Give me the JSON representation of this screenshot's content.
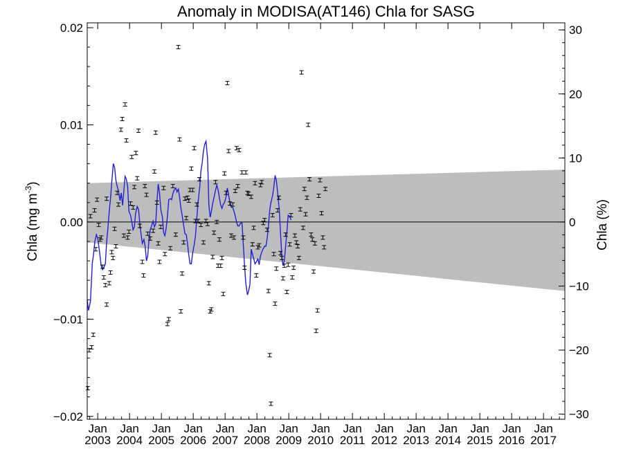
{
  "chart_data": {
    "type": "scatter",
    "title": "Anomaly in MODISA(AT146) Chla for SASG",
    "ylabel": "Chla (mg m",
    "ylabel_superscript": "-3",
    "ylabel_close": ")",
    "ylabel_right": "Chla (%)",
    "xlim": [
      2002.67,
      2017.67
    ],
    "ylim": [
      -0.0203,
      0.0205
    ],
    "ylim_right": [
      -30.8,
      31.1
    ],
    "yticks": [
      {
        "value": 0.02,
        "label": "0.02"
      },
      {
        "value": 0.01,
        "label": "0.01"
      },
      {
        "value": 0.0,
        "label": "0.00"
      },
      {
        "value": -0.01,
        "label": "−0.01"
      },
      {
        "value": -0.02,
        "label": "−0.02"
      }
    ],
    "yticks_right": [
      {
        "value": 30,
        "label": "30"
      },
      {
        "value": 20,
        "label": "20"
      },
      {
        "value": 10,
        "label": "10"
      },
      {
        "value": 0,
        "label": "0"
      },
      {
        "value": -10,
        "label": "−10"
      },
      {
        "value": -20,
        "label": "−20"
      },
      {
        "value": -30,
        "label": "−30"
      }
    ],
    "xticks": [
      {
        "value": 2003,
        "month": "Jan",
        "year": "2003"
      },
      {
        "value": 2004,
        "month": "Jan",
        "year": "2004"
      },
      {
        "value": 2005,
        "month": "Jan",
        "year": "2005"
      },
      {
        "value": 2006,
        "month": "Jan",
        "year": "2006"
      },
      {
        "value": 2007,
        "month": "Jan",
        "year": "2007"
      },
      {
        "value": 2008,
        "month": "Jan",
        "year": "2008"
      },
      {
        "value": 2009,
        "month": "Jan",
        "year": "2009"
      },
      {
        "value": 2010,
        "month": "Jan",
        "year": "2010"
      },
      {
        "value": 2011,
        "month": "Jan",
        "year": "2011"
      },
      {
        "value": 2012,
        "month": "Jan",
        "year": "2012"
      },
      {
        "value": 2013,
        "month": "Jan",
        "year": "2013"
      },
      {
        "value": 2014,
        "month": "Jan",
        "year": "2014"
      },
      {
        "value": 2015,
        "month": "Jan",
        "year": "2015"
      },
      {
        "value": 2016,
        "month": "Jan",
        "year": "2016"
      },
      {
        "value": 2017,
        "month": "Jan",
        "year": "2017"
      }
    ],
    "band": {
      "x": [
        2002.67,
        2017.67
      ],
      "upper": [
        0.004,
        0.0054
      ],
      "lower": [
        -0.0021,
        -0.0071
      ]
    },
    "zero_line": 0.0,
    "points": [
      [
        2002.69,
        -0.0171
      ],
      [
        2002.73,
        -0.0132
      ],
      [
        2002.77,
        0.0006
      ],
      [
        2002.81,
        -0.0129
      ],
      [
        2002.86,
        -0.0116
      ],
      [
        2002.9,
        0.0012
      ],
      [
        2002.94,
        -0.0028
      ],
      [
        2002.98,
        0.0023
      ],
      [
        2003.03,
        -0.0003
      ],
      [
        2003.07,
        -0.0018
      ],
      [
        2003.11,
        -0.0016
      ],
      [
        2003.15,
        -0.0046
      ],
      [
        2003.19,
        -0.0057
      ],
      [
        2003.24,
        -0.0065
      ],
      [
        2003.28,
        -0.0085
      ],
      [
        2003.36,
        -0.0063
      ],
      [
        2003.4,
        -0.0052
      ],
      [
        2003.44,
        -0.0031
      ],
      [
        2003.48,
        -0.0037
      ],
      [
        2003.53,
        -0.0007
      ],
      [
        2003.57,
        -0.0025
      ],
      [
        2003.61,
        0.003
      ],
      [
        2003.65,
        0.0018
      ],
      [
        2003.28,
        0.0024
      ],
      [
        2003.73,
        0.0095
      ],
      [
        2003.77,
        0.0106
      ],
      [
        2003.82,
        -0.0014
      ],
      [
        2003.86,
        0.0121
      ],
      [
        2003.9,
        0.0084
      ],
      [
        2003.94,
        -0.0016
      ],
      [
        2003.98,
        -0.001
      ],
      [
        2004.03,
        0.0019
      ],
      [
        2004.07,
        0.0067
      ],
      [
        2004.11,
        0.0015
      ],
      [
        2004.15,
        0.0036
      ],
      [
        2004.2,
        0.0071
      ],
      [
        2004.24,
        0.0045
      ],
      [
        2004.28,
        0.0094
      ],
      [
        2004.32,
        -0.0004
      ],
      [
        2004.4,
        -0.0041
      ],
      [
        2004.44,
        -0.0055
      ],
      [
        2004.48,
        0.0037
      ],
      [
        2004.53,
        0.0028
      ],
      [
        2004.57,
        -0.0012
      ],
      [
        2004.65,
        -0.0017
      ],
      [
        2004.74,
        -0.0009
      ],
      [
        2004.78,
        0.0052
      ],
      [
        2004.82,
        0.0092
      ],
      [
        2004.86,
        0.002
      ],
      [
        2004.9,
        -0.0022
      ],
      [
        2004.94,
        -0.0041
      ],
      [
        2004.98,
        -0.0005
      ],
      [
        2005.07,
        0.0035
      ],
      [
        2005.11,
        -0.0033
      ],
      [
        2005.19,
        -0.0105
      ],
      [
        2005.23,
        -0.01
      ],
      [
        2005.28,
        -0.0027
      ],
      [
        2005.36,
        0.0037
      ],
      [
        2005.45,
        -0.0013
      ],
      [
        2005.53,
        0.018
      ],
      [
        2005.57,
        0.0085
      ],
      [
        2005.61,
        -0.0092
      ],
      [
        2005.65,
        -0.0053
      ],
      [
        2005.7,
        -0.0021
      ],
      [
        2005.74,
        0.0024
      ],
      [
        2005.78,
        0.0004
      ],
      [
        2005.82,
        0.0025
      ],
      [
        2005.86,
        0.0022
      ],
      [
        2005.9,
        0.0033
      ],
      [
        2005.94,
        0.0055
      ],
      [
        2005.98,
        0.0033
      ],
      [
        2006.03,
        0.0076
      ],
      [
        2006.07,
        0.0001
      ],
      [
        2006.11,
        0.0018
      ],
      [
        2006.15,
        0.0001
      ],
      [
        2006.19,
        0.0044
      ],
      [
        2006.24,
        -0.0003
      ],
      [
        2006.32,
        -0.0021
      ],
      [
        2006.4,
        0.0001
      ],
      [
        2006.45,
        -0.0002
      ],
      [
        2006.49,
        -0.0063
      ],
      [
        2006.53,
        -0.0092
      ],
      [
        2006.57,
        -0.009
      ],
      [
        2006.61,
        -0.0036
      ],
      [
        2006.65,
        -0.0011
      ],
      [
        2006.7,
        0.0041
      ],
      [
        2006.74,
        0.0
      ],
      [
        2006.78,
        -0.0045
      ],
      [
        2006.82,
        -0.0018
      ],
      [
        2006.86,
        -0.0045
      ],
      [
        2006.9,
        -0.0037
      ],
      [
        2006.94,
        -0.0074
      ],
      [
        2006.98,
        0.005
      ],
      [
        2007.03,
        0.003
      ],
      [
        2007.07,
        0.0143
      ],
      [
        2007.11,
        0.0073
      ],
      [
        2007.15,
        0.0019
      ],
      [
        2007.19,
        -0.0014
      ],
      [
        2007.24,
        0.0018
      ],
      [
        2007.28,
        -0.0016
      ],
      [
        2007.32,
        0.0032
      ],
      [
        2007.36,
        0.0076
      ],
      [
        2007.4,
        0.0037
      ],
      [
        2007.44,
        0.0074
      ],
      [
        2007.53,
        0.0051
      ],
      [
        2007.57,
        -0.0016
      ],
      [
        2007.61,
        -0.0047
      ],
      [
        2007.65,
        0.0051
      ],
      [
        2007.7,
        0.003
      ],
      [
        2007.74,
        0.0029
      ],
      [
        2007.82,
        0.0026
      ],
      [
        2007.86,
        -0.0023
      ],
      [
        2007.9,
        -0.0006
      ],
      [
        2007.94,
        0.004
      ],
      [
        2007.98,
        -0.0055
      ],
      [
        2008.03,
        -0.0026
      ],
      [
        2008.07,
        -0.0024
      ],
      [
        2008.11,
        0.0038
      ],
      [
        2008.15,
        0.0041
      ],
      [
        2008.2,
        -0.0001
      ],
      [
        2008.24,
        0.0002
      ],
      [
        2008.32,
        -0.0008
      ],
      [
        2008.36,
        -0.0071
      ],
      [
        2008.4,
        -0.0137
      ],
      [
        2008.44,
        -0.0187
      ],
      [
        2008.49,
        0.0007
      ],
      [
        2008.53,
        -0.0033
      ],
      [
        2008.57,
        -0.0084
      ],
      [
        2008.61,
        -0.0048
      ],
      [
        2008.65,
        0.0012
      ],
      [
        2008.69,
        0.0025
      ],
      [
        2008.74,
        -0.0032
      ],
      [
        2008.78,
        -0.0037
      ],
      [
        2008.82,
        -0.0058
      ],
      [
        2008.86,
        -0.0045
      ],
      [
        2008.9,
        -0.0013
      ],
      [
        2008.94,
        -0.0072
      ],
      [
        2008.98,
        -0.0044
      ],
      [
        2009.03,
        -0.0023
      ],
      [
        2009.07,
        0.0007
      ],
      [
        2009.11,
        -0.0057
      ],
      [
        2009.15,
        -0.0047
      ],
      [
        2009.19,
        -0.0014
      ],
      [
        2009.24,
        -0.0021
      ],
      [
        2009.28,
        -0.0025
      ],
      [
        2009.32,
        -0.0037
      ],
      [
        2009.36,
        0.0013
      ],
      [
        2009.4,
        0.0154
      ],
      [
        2009.45,
        -0.0006
      ],
      [
        2009.49,
        0.0034
      ],
      [
        2009.53,
        0.0008
      ],
      [
        2009.57,
        0.0025
      ],
      [
        2009.61,
        0.01
      ],
      [
        2009.65,
        0.0044
      ],
      [
        2009.7,
        -0.0013
      ],
      [
        2009.74,
        -0.0018
      ],
      [
        2009.78,
        -0.0051
      ],
      [
        2009.82,
        -0.0022
      ],
      [
        2009.86,
        -0.0112
      ],
      [
        2009.9,
        -0.0091
      ],
      [
        2009.94,
        0.0027
      ],
      [
        2009.98,
        0.0043
      ],
      [
        2010.03,
        0.0009
      ],
      [
        2010.07,
        -0.0016
      ],
      [
        2010.11,
        -0.0026
      ],
      [
        2010.15,
        0.0034
      ]
    ],
    "trend_line": [
      [
        2002.67,
        -0.008
      ],
      [
        2002.71,
        -0.0091
      ],
      [
        2002.77,
        -0.0082
      ],
      [
        2002.83,
        -0.0042
      ],
      [
        2002.87,
        -0.0033
      ],
      [
        2002.91,
        -0.002
      ],
      [
        2002.96,
        -0.0013
      ],
      [
        2003.0,
        -0.0017
      ],
      [
        2003.05,
        -0.0029
      ],
      [
        2003.11,
        -0.0045
      ],
      [
        2003.15,
        -0.0049
      ],
      [
        2003.19,
        -0.0047
      ],
      [
        2003.24,
        -0.0043
      ],
      [
        2003.28,
        -0.002
      ],
      [
        2003.32,
        -0.0006
      ],
      [
        2003.36,
        0.001
      ],
      [
        2003.4,
        0.0024
      ],
      [
        2003.45,
        0.0045
      ],
      [
        2003.49,
        0.006
      ],
      [
        2003.53,
        0.0056
      ],
      [
        2003.57,
        0.0043
      ],
      [
        2003.61,
        0.0037
      ],
      [
        2003.65,
        0.0032
      ],
      [
        2003.7,
        0.0022
      ],
      [
        2003.74,
        0.003
      ],
      [
        2003.78,
        0.0017
      ],
      [
        2003.82,
        0.0032
      ],
      [
        2003.86,
        0.0047
      ],
      [
        2003.9,
        0.0044
      ],
      [
        2003.94,
        0.0036
      ],
      [
        2003.98,
        0.0011
      ],
      [
        2004.03,
        0.0007
      ],
      [
        2004.07,
        0.0
      ],
      [
        2004.11,
        -0.0008
      ],
      [
        2004.15,
        -0.0005
      ],
      [
        2004.19,
        0.0009
      ],
      [
        2004.24,
        0.0016
      ],
      [
        2004.28,
        0.0013
      ],
      [
        2004.32,
        -0.0001
      ],
      [
        2004.36,
        -0.0012
      ],
      [
        2004.4,
        -0.0022
      ],
      [
        2004.45,
        -0.0018
      ],
      [
        2004.49,
        -0.0025
      ],
      [
        2004.53,
        -0.004
      ],
      [
        2004.57,
        -0.0035
      ],
      [
        2004.61,
        -0.0018
      ],
      [
        2004.65,
        -0.0008
      ],
      [
        2004.7,
        -0.0003
      ],
      [
        2004.74,
        0.0001
      ],
      [
        2004.78,
        -0.0005
      ],
      [
        2004.82,
        -0.0002
      ],
      [
        2004.86,
        0.0021
      ],
      [
        2004.9,
        0.0039
      ],
      [
        2004.94,
        0.003
      ],
      [
        2004.98,
        0.0013
      ],
      [
        2005.03,
        0.0005
      ],
      [
        2005.07,
        -0.0011
      ],
      [
        2005.11,
        -0.0014
      ],
      [
        2005.15,
        -0.0006
      ],
      [
        2005.19,
        0.0006
      ],
      [
        2005.23,
        0.0023
      ],
      [
        2005.28,
        0.0024
      ],
      [
        2005.32,
        0.0023
      ],
      [
        2005.36,
        0.0029
      ],
      [
        2005.4,
        0.0033
      ],
      [
        2005.45,
        0.0035
      ],
      [
        2005.49,
        0.0031
      ],
      [
        2005.53,
        0.0034
      ],
      [
        2005.57,
        0.0026
      ],
      [
        2005.61,
        0.0015
      ],
      [
        2005.65,
        0.0007
      ],
      [
        2005.7,
        -0.0004
      ],
      [
        2005.74,
        -0.0012
      ],
      [
        2005.78,
        -0.0013
      ],
      [
        2005.82,
        -0.0022
      ],
      [
        2005.86,
        -0.0034
      ],
      [
        2005.9,
        -0.0043
      ],
      [
        2005.94,
        -0.0043
      ],
      [
        2005.98,
        -0.0032
      ],
      [
        2006.03,
        -0.0023
      ],
      [
        2006.07,
        -0.0014
      ],
      [
        2006.11,
        0.0003
      ],
      [
        2006.15,
        0.002
      ],
      [
        2006.2,
        0.0035
      ],
      [
        2006.24,
        0.0052
      ],
      [
        2006.28,
        0.0061
      ],
      [
        2006.32,
        0.0073
      ],
      [
        2006.36,
        0.008
      ],
      [
        2006.4,
        0.0083
      ],
      [
        2006.45,
        0.0065
      ],
      [
        2006.49,
        0.0018
      ],
      [
        2006.53,
        0.0005
      ],
      [
        2006.57,
        0.0011
      ],
      [
        2006.61,
        0.0019
      ],
      [
        2006.65,
        0.0025
      ],
      [
        2006.7,
        0.0033
      ],
      [
        2006.74,
        0.0038
      ],
      [
        2006.78,
        0.0033
      ],
      [
        2006.82,
        0.0025
      ],
      [
        2006.86,
        0.0018
      ],
      [
        2006.9,
        0.0014
      ],
      [
        2006.94,
        0.0018
      ],
      [
        2006.98,
        0.002
      ],
      [
        2007.03,
        0.0026
      ],
      [
        2007.07,
        0.0035
      ],
      [
        2007.11,
        0.0028
      ],
      [
        2007.15,
        0.002
      ],
      [
        2007.2,
        0.0015
      ],
      [
        2007.24,
        0.0015
      ],
      [
        2007.28,
        0.0011
      ],
      [
        2007.32,
        0.0006
      ],
      [
        2007.36,
        0.0
      ],
      [
        2007.4,
        -0.0004
      ],
      [
        2007.44,
        -0.0004
      ],
      [
        2007.49,
        -0.0001
      ],
      [
        2007.53,
        -0.0001
      ],
      [
        2007.57,
        -0.0022
      ],
      [
        2007.61,
        -0.0044
      ],
      [
        2007.65,
        -0.0063
      ],
      [
        2007.7,
        -0.0075
      ],
      [
        2007.74,
        -0.0071
      ],
      [
        2007.78,
        -0.0064
      ],
      [
        2007.82,
        -0.0028
      ],
      [
        2007.86,
        -0.0033
      ],
      [
        2007.9,
        -0.0038
      ],
      [
        2007.94,
        -0.0043
      ],
      [
        2007.98,
        -0.0041
      ],
      [
        2008.03,
        -0.0038
      ],
      [
        2008.07,
        -0.0044
      ],
      [
        2008.11,
        -0.0035
      ],
      [
        2008.15,
        -0.0031
      ],
      [
        2008.19,
        -0.0028
      ],
      [
        2008.24,
        -0.0025
      ],
      [
        2008.28,
        -0.0025
      ],
      [
        2008.32,
        -0.0017
      ],
      [
        2008.36,
        -0.0005
      ],
      [
        2008.4,
        0.0012
      ],
      [
        2008.44,
        0.002
      ],
      [
        2008.49,
        0.0027
      ],
      [
        2008.53,
        0.0036
      ],
      [
        2008.57,
        0.0048
      ],
      [
        2008.61,
        0.0043
      ],
      [
        2008.65,
        0.003
      ],
      [
        2008.7,
        0.0013
      ],
      [
        2008.74,
        -0.0011
      ],
      [
        2008.78,
        -0.0035
      ],
      [
        2008.82,
        -0.0045
      ],
      [
        2008.86,
        -0.004
      ],
      [
        2008.9,
        -0.0025
      ],
      [
        2008.94,
        -0.0011
      ],
      [
        2008.98,
        0.0007
      ],
      [
        2009.03,
        0.0006
      ],
      [
        2009.07,
        0.0002
      ]
    ]
  }
}
